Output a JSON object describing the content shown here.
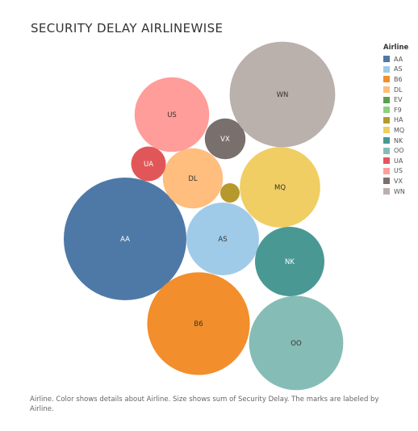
{
  "chart_data": {
    "type": "packed-bubble",
    "title": "SECURITY DELAY AIRLINEWISE",
    "legend_title": "Airline",
    "legend_position": "right",
    "caption": "Airline.  Color shows details about Airline.  Size shows sum of Security Delay.  The marks are labeled by Airline.",
    "categories": [
      "AA",
      "AS",
      "B6",
      "DL",
      "EV",
      "F9",
      "HA",
      "MQ",
      "NK",
      "OO",
      "UA",
      "US",
      "VX",
      "WN"
    ],
    "values": [
      100,
      35,
      70,
      24,
      0,
      0,
      2.5,
      43,
      32,
      59,
      8,
      37,
      11,
      74
    ],
    "colors": [
      "#4e79a7",
      "#a0cbe8",
      "#f28e2b",
      "#ffbe7d",
      "#59a14f",
      "#8cd17d",
      "#b6992d",
      "#f1ce63",
      "#499894",
      "#86bcb6",
      "#e15759",
      "#ff9d9a",
      "#79706e",
      "#bab0ac"
    ],
    "label_colors": [
      "#ffffff",
      "#333333",
      "#333333",
      "#333333",
      "#333333",
      "#333333",
      "#333333",
      "#333333",
      "#ffffff",
      "#333333",
      "#ffffff",
      "#333333",
      "#ffffff",
      "#333333"
    ],
    "labeled": [
      true,
      true,
      true,
      true,
      false,
      false,
      false,
      true,
      true,
      true,
      true,
      true,
      true,
      true
    ]
  }
}
